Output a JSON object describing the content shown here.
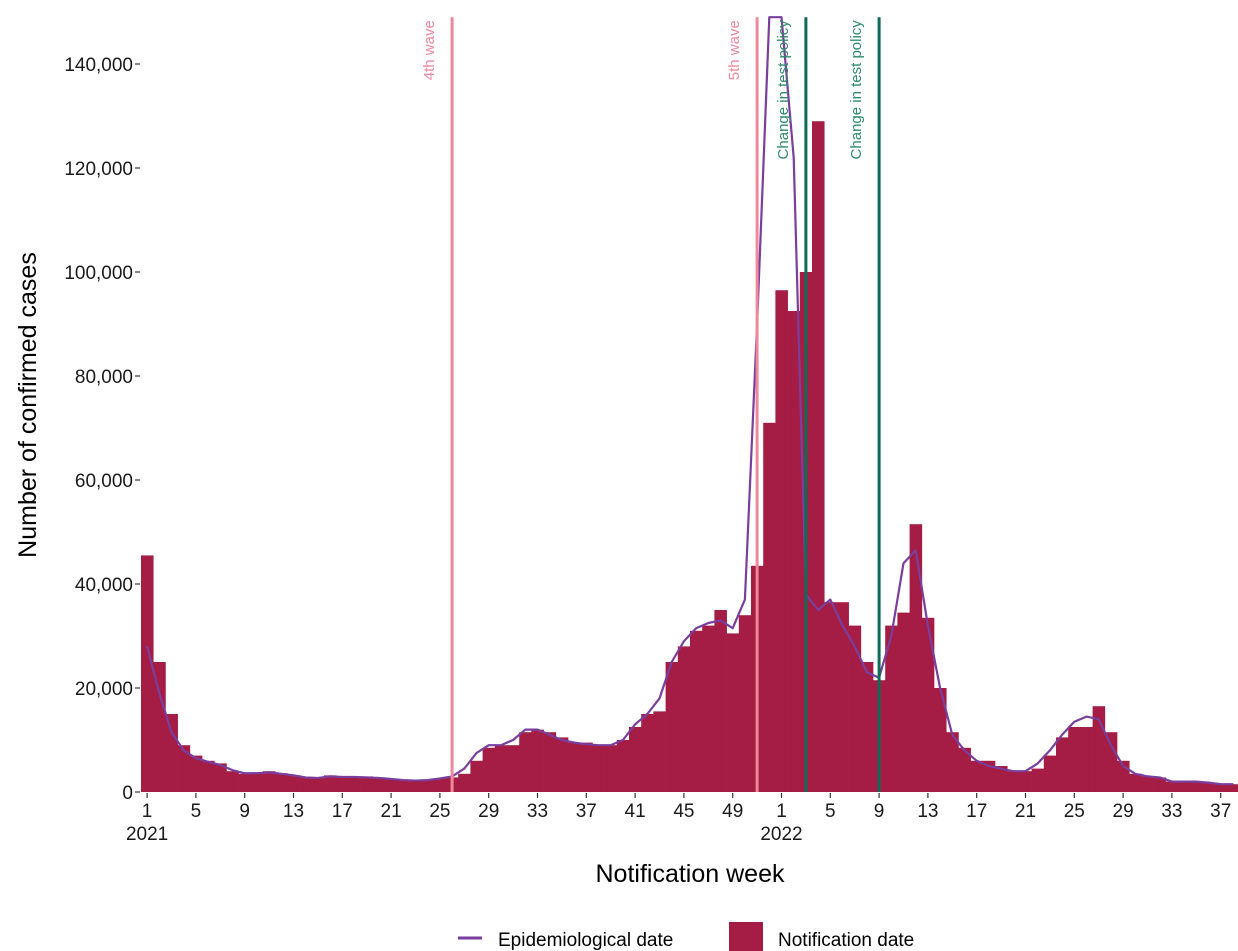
{
  "colors": {
    "bars": "#A51D44",
    "line": "#7A3E9D",
    "wave_line": "#F0889C",
    "policy_line": "#0E6B55",
    "policy_text": "#2E8B6A"
  },
  "chart_data": {
    "type": "bar",
    "xlabel": "Notification week",
    "ylabel": "Number of confirmed cases",
    "ylim": [
      0,
      149000
    ],
    "grid": false,
    "legend_position": "bottom",
    "y_ticks": [
      0,
      20000,
      40000,
      60000,
      80000,
      100000,
      120000,
      140000
    ],
    "y_tick_labels": [
      "0",
      "20,000",
      "40,000",
      "60,000",
      "80,000",
      "100,000",
      "120,000",
      "140,000"
    ],
    "x_tick_labels": [
      {
        "week": "2021-W1",
        "label": "1",
        "year": "2021"
      },
      {
        "week": "2021-W5",
        "label": "5"
      },
      {
        "week": "2021-W9",
        "label": "9"
      },
      {
        "week": "2021-W13",
        "label": "13"
      },
      {
        "week": "2021-W17",
        "label": "17"
      },
      {
        "week": "2021-W21",
        "label": "21"
      },
      {
        "week": "2021-W25",
        "label": "25"
      },
      {
        "week": "2021-W29",
        "label": "29"
      },
      {
        "week": "2021-W33",
        "label": "33"
      },
      {
        "week": "2021-W37",
        "label": "37"
      },
      {
        "week": "2021-W41",
        "label": "41"
      },
      {
        "week": "2021-W45",
        "label": "45"
      },
      {
        "week": "2021-W49",
        "label": "49"
      },
      {
        "week": "2022-W1",
        "label": "1",
        "year": "2022"
      },
      {
        "week": "2022-W5",
        "label": "5"
      },
      {
        "week": "2022-W9",
        "label": "9"
      },
      {
        "week": "2022-W13",
        "label": "13"
      },
      {
        "week": "2022-W17",
        "label": "17"
      },
      {
        "week": "2022-W21",
        "label": "21"
      },
      {
        "week": "2022-W25",
        "label": "25"
      },
      {
        "week": "2022-W29",
        "label": "29"
      },
      {
        "week": "2022-W33",
        "label": "33"
      },
      {
        "week": "2022-W37",
        "label": "37"
      }
    ],
    "weeks": [
      "2021-W1",
      "2021-W2",
      "2021-W3",
      "2021-W4",
      "2021-W5",
      "2021-W6",
      "2021-W7",
      "2021-W8",
      "2021-W9",
      "2021-W10",
      "2021-W11",
      "2021-W12",
      "2021-W13",
      "2021-W14",
      "2021-W15",
      "2021-W16",
      "2021-W17",
      "2021-W18",
      "2021-W19",
      "2021-W20",
      "2021-W21",
      "2021-W22",
      "2021-W23",
      "2021-W24",
      "2021-W25",
      "2021-W26",
      "2021-W27",
      "2021-W28",
      "2021-W29",
      "2021-W30",
      "2021-W31",
      "2021-W32",
      "2021-W33",
      "2021-W34",
      "2021-W35",
      "2021-W36",
      "2021-W37",
      "2021-W38",
      "2021-W39",
      "2021-W40",
      "2021-W41",
      "2021-W42",
      "2021-W43",
      "2021-W44",
      "2021-W45",
      "2021-W46",
      "2021-W47",
      "2021-W48",
      "2021-W49",
      "2021-W50",
      "2021-W51",
      "2021-W52",
      "2022-W1",
      "2022-W2",
      "2022-W3",
      "2022-W4",
      "2022-W5",
      "2022-W6",
      "2022-W7",
      "2022-W8",
      "2022-W9",
      "2022-W10",
      "2022-W11",
      "2022-W12",
      "2022-W13",
      "2022-W14",
      "2022-W15",
      "2022-W16",
      "2022-W17",
      "2022-W18",
      "2022-W19",
      "2022-W20",
      "2022-W21",
      "2022-W22",
      "2022-W23",
      "2022-W24",
      "2022-W25",
      "2022-W26",
      "2022-W27",
      "2022-W28",
      "2022-W29",
      "2022-W30",
      "2022-W31",
      "2022-W32",
      "2022-W33",
      "2022-W34",
      "2022-W35",
      "2022-W36",
      "2022-W37",
      "2022-W38"
    ],
    "series": [
      {
        "name": "Notification date",
        "type": "bar",
        "values": [
          45500,
          25000,
          15000,
          9000,
          7000,
          6000,
          5500,
          4000,
          3500,
          3800,
          4000,
          3600,
          3200,
          2800,
          2800,
          3200,
          3000,
          3000,
          3000,
          2800,
          2600,
          2400,
          2400,
          2400,
          2600,
          2800,
          3500,
          6000,
          8500,
          9000,
          9000,
          11500,
          12000,
          11500,
          10500,
          9500,
          9500,
          9000,
          9000,
          10000,
          12500,
          15000,
          15500,
          25000,
          28000,
          31000,
          32000,
          35000,
          30500,
          34000,
          43500,
          71000,
          96500,
          92500,
          100000,
          129000,
          36500,
          36500,
          32000,
          25000,
          21500,
          32000,
          34500,
          51500,
          33500,
          20000,
          11500,
          8500,
          6000,
          6000,
          5000,
          4000,
          4000,
          4500,
          7000,
          10500,
          12500,
          12500,
          16500,
          11500,
          6000,
          3500,
          3000,
          2800,
          2000,
          2000,
          2000,
          1800,
          1500,
          1500
        ]
      },
      {
        "name": "Epidemiological date",
        "type": "line",
        "values": [
          28000,
          19000,
          11500,
          8000,
          6500,
          5800,
          5200,
          4200,
          3600,
          3600,
          3800,
          3500,
          3200,
          2800,
          2700,
          3000,
          2900,
          2900,
          2800,
          2700,
          2500,
          2300,
          2200,
          2300,
          2600,
          3000,
          4500,
          7500,
          9000,
          9000,
          10000,
          12000,
          12000,
          11000,
          10000,
          9500,
          9200,
          9000,
          9000,
          10000,
          13000,
          15000,
          18000,
          25000,
          29000,
          31500,
          32500,
          33000,
          31500,
          37000,
          90000,
          149000,
          149000,
          122000,
          38000,
          35000,
          37000,
          32000,
          28000,
          23000,
          22000,
          30000,
          44000,
          46500,
          32000,
          20000,
          11000,
          8000,
          6000,
          5000,
          4500,
          4000,
          4000,
          5500,
          8000,
          11000,
          13500,
          14500,
          14000,
          9000,
          5000,
          3500,
          3000,
          2800,
          2000,
          2000,
          2000,
          1800,
          1500,
          1500
        ]
      }
    ],
    "annotations": [
      {
        "week": "2021-W26",
        "label": "4th wave",
        "kind": "wave"
      },
      {
        "week": "2021-W51",
        "label": "5th wave",
        "kind": "wave"
      },
      {
        "week": "2022-W3",
        "label": "Change in test policy",
        "kind": "policy"
      },
      {
        "week": "2022-W9",
        "label": "Change in test policy",
        "kind": "policy"
      }
    ],
    "legend": [
      {
        "label": "Epidemiological date",
        "kind": "line"
      },
      {
        "label": "Notification date",
        "kind": "bar"
      }
    ]
  }
}
